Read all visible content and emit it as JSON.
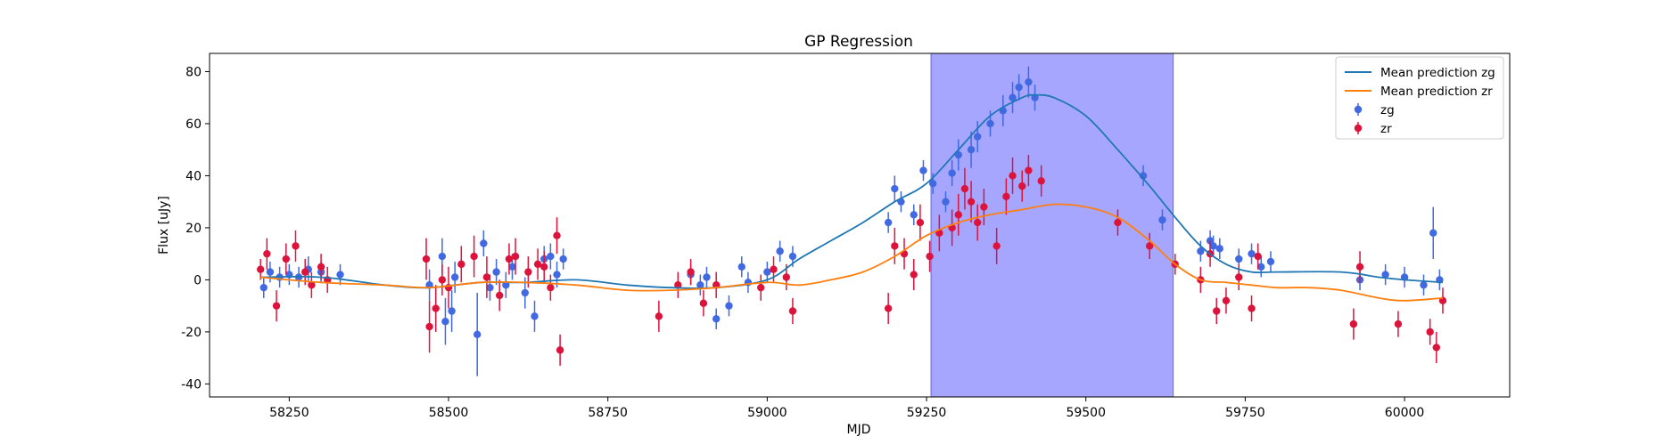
{
  "chart_data": {
    "type": "scatter",
    "title": "GP Regression",
    "xlabel": "MJD",
    "ylabel": "Flux [uJy]",
    "xlim": [
      58125,
      60165
    ],
    "ylim": [
      -45,
      87
    ],
    "xticks": [
      58250,
      58500,
      58750,
      59000,
      59250,
      59500,
      59750,
      60000
    ],
    "yticks": [
      -40,
      -20,
      0,
      20,
      40,
      60,
      80
    ],
    "legend_position": "top-right",
    "shaded_region": {
      "x_start": 59257,
      "x_end": 59637,
      "color": "#a6a6ff"
    },
    "colors": {
      "zg_line": "#1f77b4",
      "zr_line": "#ff7f0e",
      "zg_points": "#4169e1",
      "zr_points": "#dc143c"
    },
    "mean_predictions": [
      {
        "name": "Mean prediction zg",
        "color": "#1f77b4",
        "x": [
          58205,
          58300,
          58400,
          58470,
          58550,
          58620,
          58700,
          58780,
          58850,
          58920,
          59000,
          59050,
          59100,
          59150,
          59200,
          59250,
          59300,
          59350,
          59400,
          59420,
          59450,
          59500,
          59550,
          59600,
          59640,
          59680,
          59720,
          59760,
          59800,
          59900,
          59960,
          60000,
          60060
        ],
        "y": [
          1,
          1,
          -2,
          -3,
          -1,
          -1,
          0,
          -2,
          -3,
          -3,
          0,
          8,
          15,
          22,
          30,
          37,
          50,
          63,
          70,
          71,
          70,
          63,
          50,
          36,
          24,
          13,
          6,
          3,
          3,
          3,
          1,
          0,
          -1
        ]
      },
      {
        "name": "Mean prediction zr",
        "color": "#ff7f0e",
        "x": [
          58205,
          58300,
          58400,
          58470,
          58550,
          58620,
          58700,
          58780,
          58850,
          58920,
          59000,
          59050,
          59100,
          59150,
          59200,
          59250,
          59300,
          59350,
          59400,
          59450,
          59500,
          59550,
          59600,
          59640,
          59680,
          59720,
          59760,
          59800,
          59850,
          59900,
          59960,
          60000,
          60060
        ],
        "y": [
          1,
          -1,
          -2,
          -3,
          -1,
          -1,
          -2,
          -4,
          -4,
          -3,
          -1,
          -2,
          0,
          3,
          9,
          17,
          22,
          25,
          27,
          29,
          28,
          24,
          15,
          6,
          0,
          -1,
          -2,
          -3,
          -3,
          -4,
          -7,
          -8,
          -7
        ]
      }
    ],
    "series": [
      {
        "name": "zg",
        "color": "#4169e1",
        "marker": "o",
        "x": [
          58210,
          58220,
          58235,
          58250,
          58265,
          58280,
          58300,
          58330,
          58470,
          58490,
          58495,
          58505,
          58510,
          58545,
          58555,
          58565,
          58575,
          58590,
          58600,
          58620,
          58635,
          58650,
          58660,
          58670,
          58680,
          58880,
          58895,
          58905,
          58920,
          58940,
          58960,
          58970,
          59000,
          59020,
          59040,
          59190,
          59200,
          59210,
          59230,
          59245,
          59260,
          59280,
          59290,
          59300,
          59320,
          59330,
          59350,
          59370,
          59385,
          59395,
          59410,
          59420,
          59590,
          59620,
          59680,
          59695,
          59700,
          59710,
          59740,
          59760,
          59775,
          59790,
          59930,
          59970,
          60000,
          60030,
          60045,
          60055
        ],
        "y": [
          -3,
          3,
          1,
          2,
          1,
          4,
          3,
          2,
          -2,
          9,
          -16,
          -12,
          1,
          -21,
          14,
          -3,
          3,
          -2,
          5,
          -5,
          -14,
          8,
          9,
          2,
          8,
          2,
          -2,
          1,
          -15,
          -10,
          5,
          -1,
          3,
          11,
          9,
          22,
          35,
          30,
          25,
          42,
          37,
          30,
          41,
          48,
          50,
          55,
          60,
          65,
          70,
          74,
          76,
          70,
          40,
          23,
          11,
          15,
          13,
          12,
          8,
          10,
          5,
          7,
          0,
          2,
          1,
          -2,
          18,
          0
        ],
        "yerr": [
          4,
          4,
          4,
          4,
          4,
          5,
          4,
          4,
          6,
          7,
          9,
          8,
          6,
          16,
          5,
          5,
          5,
          5,
          5,
          6,
          6,
          5,
          5,
          5,
          4,
          4,
          4,
          4,
          4,
          4,
          4,
          4,
          4,
          4,
          4,
          4,
          5,
          4,
          4,
          4,
          4,
          4,
          5,
          6,
          7,
          6,
          5,
          6,
          6,
          5,
          6,
          5,
          4,
          4,
          4,
          4,
          4,
          4,
          4,
          4,
          4,
          4,
          4,
          4,
          4,
          4,
          10,
          4
        ]
      },
      {
        "name": "zr",
        "color": "#dc143c",
        "marker": "o",
        "x": [
          58205,
          58215,
          58230,
          58245,
          58260,
          58275,
          58285,
          58300,
          58310,
          58465,
          58470,
          58480,
          58490,
          58500,
          58520,
          58540,
          58560,
          58580,
          58595,
          58605,
          58625,
          58640,
          58650,
          58660,
          58670,
          58675,
          58830,
          58860,
          58880,
          58900,
          58920,
          58990,
          59010,
          59030,
          59040,
          59190,
          59200,
          59215,
          59230,
          59240,
          59255,
          59270,
          59290,
          59300,
          59310,
          59320,
          59330,
          59340,
          59360,
          59375,
          59385,
          59400,
          59410,
          59430,
          59550,
          59600,
          59640,
          59680,
          59695,
          59705,
          59720,
          59740,
          59760,
          59770,
          59920,
          59930,
          59990,
          60040,
          60050,
          60060
        ],
        "y": [
          4,
          10,
          -10,
          8,
          13,
          3,
          -2,
          5,
          0,
          8,
          -18,
          -11,
          0,
          -3,
          6,
          9,
          1,
          -6,
          8,
          9,
          3,
          6,
          5,
          -3,
          17,
          -27,
          -14,
          -2,
          3,
          -9,
          -2,
          -3,
          4,
          1,
          -12,
          -11,
          13,
          10,
          2,
          22,
          9,
          18,
          20,
          25,
          35,
          30,
          22,
          28,
          13,
          32,
          40,
          36,
          42,
          38,
          22,
          13,
          6,
          0,
          10,
          -12,
          -8,
          1,
          -11,
          9,
          -17,
          5,
          -17,
          -20,
          -26,
          -8
        ],
        "yerr": [
          4,
          6,
          6,
          6,
          6,
          5,
          5,
          5,
          5,
          8,
          10,
          9,
          6,
          8,
          7,
          8,
          8,
          6,
          6,
          7,
          6,
          6,
          6,
          5,
          7,
          6,
          6,
          5,
          5,
          5,
          5,
          5,
          5,
          5,
          5,
          6,
          7,
          6,
          6,
          7,
          6,
          7,
          7,
          8,
          8,
          8,
          7,
          7,
          7,
          7,
          7,
          6,
          6,
          6,
          5,
          5,
          4,
          5,
          5,
          5,
          5,
          5,
          5,
          5,
          6,
          6,
          5,
          5,
          6,
          5
        ]
      }
    ]
  }
}
